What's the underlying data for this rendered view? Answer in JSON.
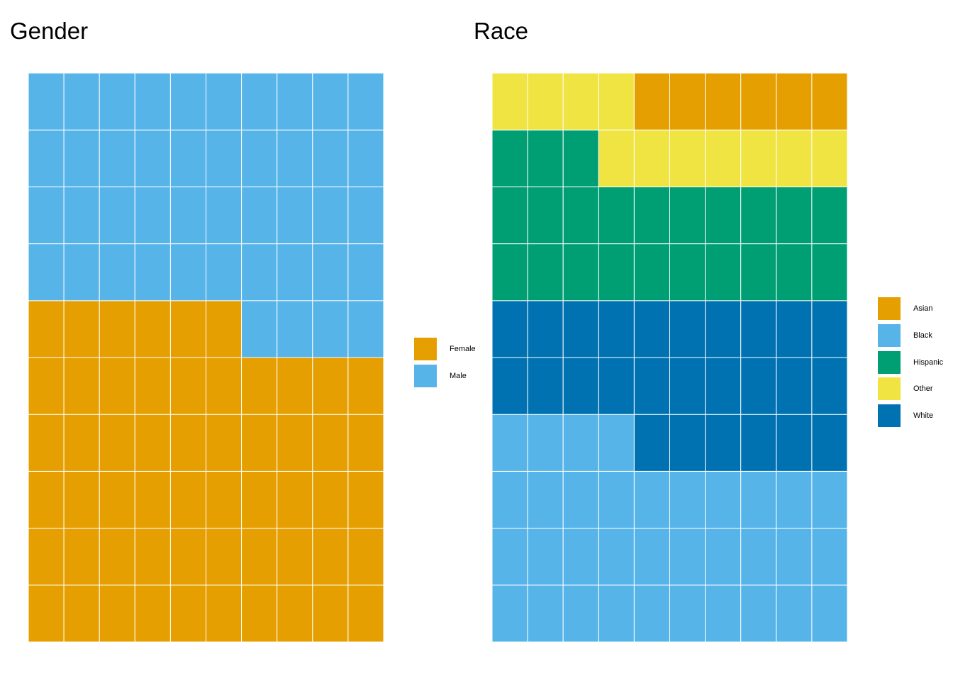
{
  "chart_data": [
    {
      "type": "waffle",
      "title": "Gender",
      "rows": 10,
      "cols": 10,
      "legend_position": "right",
      "categories": [
        {
          "name": "Female",
          "count": 56,
          "color": "#E69F00"
        },
        {
          "name": "Male",
          "count": 44,
          "color": "#56B4E9"
        }
      ]
    },
    {
      "type": "waffle",
      "title": "Race",
      "rows": 10,
      "cols": 10,
      "legend_position": "right",
      "categories": [
        {
          "name": "Black",
          "count": 34,
          "color": "#56B4E9"
        },
        {
          "name": "White",
          "count": 26,
          "color": "#0072B2"
        },
        {
          "name": "Hispanic",
          "count": 23,
          "color": "#009E73"
        },
        {
          "name": "Other",
          "count": 11,
          "color": "#F0E442"
        },
        {
          "name": "Asian",
          "count": 6,
          "color": "#E69F00"
        }
      ],
      "legend_order": [
        "Asian",
        "Black",
        "Hispanic",
        "Other",
        "White"
      ]
    }
  ]
}
